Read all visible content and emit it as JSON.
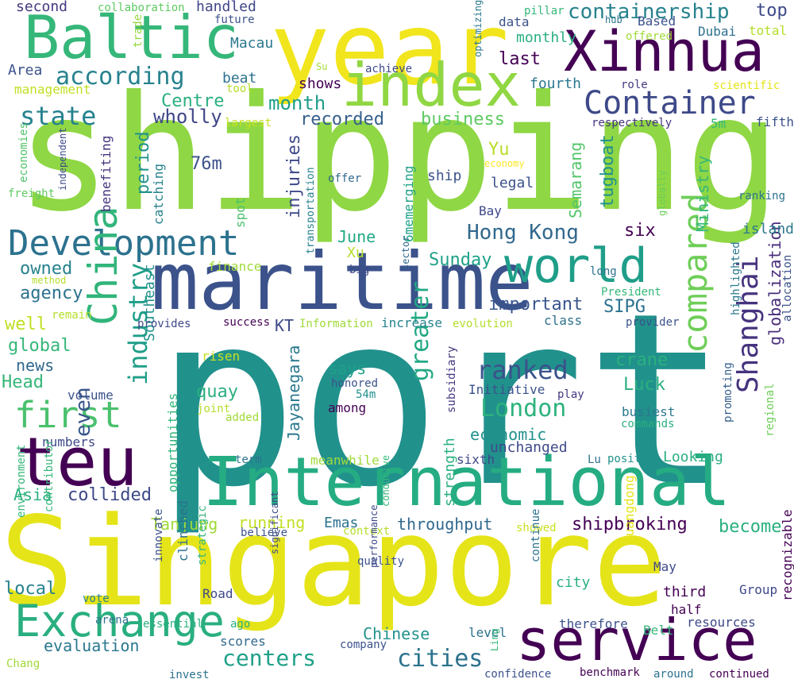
{
  "words": [
    {
      "text": "port",
      "color": "#21918c"
    },
    {
      "text": "shipping",
      "color": "#8fd744"
    },
    {
      "text": "Singapore",
      "color": "#e5e419"
    },
    {
      "text": "year",
      "color": "#f1e51d"
    },
    {
      "text": "International",
      "color": "#25ac82"
    },
    {
      "text": "maritime",
      "color": "#3b528b"
    },
    {
      "text": "Xinhua",
      "color": "#440154"
    },
    {
      "text": "index",
      "color": "#90d743"
    },
    {
      "text": "service",
      "color": "#440154"
    },
    {
      "text": "Baltic",
      "color": "#35b779"
    },
    {
      "text": "Container",
      "color": "#3e4989"
    },
    {
      "text": "world",
      "color": "#1f9e89"
    },
    {
      "text": "teu",
      "color": "#440154"
    },
    {
      "text": "Development",
      "color": "#2c728e"
    },
    {
      "text": "Exchange",
      "color": "#29af7f"
    },
    {
      "text": "first",
      "color": "#4ac16d"
    },
    {
      "text": "China",
      "color": "#31b57b"
    },
    {
      "text": "compared",
      "color": "#6ece58"
    },
    {
      "text": "Shanghai",
      "color": "#46337e"
    },
    {
      "text": "according",
      "color": "#26828e"
    },
    {
      "text": "containership",
      "color": "#26828e"
    },
    {
      "text": "state",
      "color": "#26828e"
    },
    {
      "text": "industry",
      "color": "#1f9e89"
    },
    {
      "text": "greater",
      "color": "#22a884"
    },
    {
      "text": "even",
      "color": "#39568c"
    },
    {
      "text": "ranked",
      "color": "#3b528b"
    },
    {
      "text": "London",
      "color": "#2db27d"
    },
    {
      "text": "centers",
      "color": "#1fa188"
    },
    {
      "text": "cities",
      "color": "#2c728e"
    },
    {
      "text": "Hong Kong",
      "color": "#31688e"
    },
    {
      "text": "globalization",
      "color": "#472c7a"
    },
    {
      "text": "Jayanegara",
      "color": "#2a788e"
    },
    {
      "text": "Semarang",
      "color": "#52c569"
    },
    {
      "text": "injuries",
      "color": "#3e4989"
    },
    {
      "text": "business",
      "color": "#5ec962"
    },
    {
      "text": "recorded",
      "color": "#355f8d"
    },
    {
      "text": "month",
      "color": "#1f9e89"
    },
    {
      "text": "Centre",
      "color": "#2ab07f"
    },
    {
      "text": "wholly",
      "color": "#404688"
    },
    {
      "text": "last",
      "color": "#440154"
    },
    {
      "text": "fourth",
      "color": "#2a788e"
    },
    {
      "text": "data",
      "color": "#3b528b"
    },
    {
      "text": "monthly",
      "color": "#29af7f"
    },
    {
      "text": "top",
      "color": "#3e4989"
    },
    {
      "text": "Dubai",
      "color": "#2d708e"
    },
    {
      "text": "total",
      "color": "#b5de2b"
    },
    {
      "text": "Based",
      "color": "#3b528b"
    },
    {
      "text": "offered",
      "color": "#a0da39"
    },
    {
      "text": "hub",
      "color": "#2c728e"
    },
    {
      "text": "pillar",
      "color": "#35b779"
    },
    {
      "text": "optimizing",
      "color": "#2a788e"
    },
    {
      "text": "second",
      "color": "#453781"
    },
    {
      "text": "collaboration",
      "color": "#5ec962"
    },
    {
      "text": "handled",
      "color": "#404688"
    },
    {
      "text": "future",
      "color": "#3b528b"
    },
    {
      "text": "trade",
      "color": "#95d840"
    },
    {
      "text": "Macau",
      "color": "#2a788e"
    },
    {
      "text": "Area",
      "color": "#3b528b"
    },
    {
      "text": "management",
      "color": "#c2df23"
    },
    {
      "text": "beat",
      "color": "#2c728e"
    },
    {
      "text": "tool",
      "color": "#b5de2b"
    },
    {
      "text": "Su",
      "color": "#a5db36"
    },
    {
      "text": "achieve",
      "color": "#3e4989"
    },
    {
      "text": "shows",
      "color": "#440154"
    },
    {
      "text": "role",
      "color": "#453781"
    },
    {
      "text": "scientific",
      "color": "#e5e419"
    },
    {
      "text": "respectively",
      "color": "#46337e"
    },
    {
      "text": "5m",
      "color": "#35b779"
    },
    {
      "text": "fifth",
      "color": "#3b528b"
    },
    {
      "text": "largest",
      "color": "#c8e020"
    },
    {
      "text": "economies",
      "color": "#50c46a"
    },
    {
      "text": "freight",
      "color": "#5ec962"
    },
    {
      "text": "independent",
      "color": "#3e4989"
    },
    {
      "text": "benefiting",
      "color": "#46337e"
    },
    {
      "text": "catching",
      "color": "#26828e"
    },
    {
      "text": "period",
      "color": "#21918c"
    },
    {
      "text": "76m",
      "color": "#3b528b"
    },
    {
      "text": "spot",
      "color": "#4ac16d"
    },
    {
      "text": "transportation",
      "color": "#26828e"
    },
    {
      "text": "offer",
      "color": "#31688e"
    },
    {
      "text": "ship",
      "color": "#3b528b"
    },
    {
      "text": "economy",
      "color": "#fde725"
    },
    {
      "text": "Yu",
      "color": "#b8de29"
    },
    {
      "text": "legal",
      "color": "#3b528b"
    },
    {
      "text": "tugboat",
      "color": "#21918c"
    },
    {
      "text": "Ministry",
      "color": "#35b779"
    },
    {
      "text": "globally",
      "color": "#6ece58"
    },
    {
      "text": "ranking",
      "color": "#2c728e"
    },
    {
      "text": "six",
      "color": "#440154"
    },
    {
      "text": "island",
      "color": "#2a788e"
    },
    {
      "text": "Bay",
      "color": "#3e4989"
    },
    {
      "text": "6memerging",
      "color": "#1fa188"
    },
    {
      "text": "June",
      "color": "#22a884"
    },
    {
      "text": "Xu",
      "color": "#b5de2b"
    },
    {
      "text": "owned",
      "color": "#26828e"
    },
    {
      "text": "Sunday",
      "color": "#1fa188"
    },
    {
      "text": "agency",
      "color": "#2c728e"
    },
    {
      "text": "important",
      "color": "#39568c"
    },
    {
      "text": "SIPG",
      "color": "#2c728e"
    },
    {
      "text": "finance",
      "color": "#a0da39"
    },
    {
      "text": "method",
      "color": "#b5de2b"
    },
    {
      "text": "sector",
      "color": "#31688e"
    },
    {
      "text": "big",
      "color": "#3e4989"
    },
    {
      "text": "Southeast",
      "color": "#21918c"
    },
    {
      "text": "long",
      "color": "#2c728e"
    },
    {
      "text": "President",
      "color": "#35b779"
    },
    {
      "text": "highlighted",
      "color": "#2a788e"
    },
    {
      "text": "allocation",
      "color": "#3b528b"
    },
    {
      "text": "well",
      "color": "#c2df23"
    },
    {
      "text": "remain",
      "color": "#b5de2b"
    },
    {
      "text": "provides",
      "color": "#3e4989"
    },
    {
      "text": "success",
      "color": "#440154"
    },
    {
      "text": "KT",
      "color": "#3e4989"
    },
    {
      "text": "Information",
      "color": "#a0da39"
    },
    {
      "text": "increase",
      "color": "#26828e"
    },
    {
      "text": "evolution",
      "color": "#b5de2b"
    },
    {
      "text": "class",
      "color": "#2c728e"
    },
    {
      "text": "provider",
      "color": "#3b528b"
    },
    {
      "text": "global",
      "color": "#35b779"
    },
    {
      "text": "news",
      "color": "#31688e"
    },
    {
      "text": "says",
      "color": "#1fa188"
    },
    {
      "text": "crane",
      "color": "#2ab07f"
    },
    {
      "text": "risen",
      "color": "#c8e020"
    },
    {
      "text": "honored",
      "color": "#3b528b"
    },
    {
      "text": "54m",
      "color": "#21918c"
    },
    {
      "text": "Head",
      "color": "#35b779"
    },
    {
      "text": "quay",
      "color": "#2ab07f"
    },
    {
      "text": "Luck",
      "color": "#2ab07f"
    },
    {
      "text": "opportunities",
      "color": "#31b57b"
    },
    {
      "text": "volume",
      "color": "#3b528b"
    },
    {
      "text": "Initiative",
      "color": "#3b528b"
    },
    {
      "text": "play",
      "color": "#453781"
    },
    {
      "text": "joint",
      "color": "#b5de2b"
    },
    {
      "text": "among",
      "color": "#440154"
    },
    {
      "text": "added",
      "color": "#a0da39"
    },
    {
      "text": "subsidiary",
      "color": "#453781"
    },
    {
      "text": "busiest",
      "color": "#2a788e"
    },
    {
      "text": "commands",
      "color": "#2ab07f"
    },
    {
      "text": "promoting",
      "color": "#355f8d"
    },
    {
      "text": "economic",
      "color": "#21918c"
    },
    {
      "text": "unchanged",
      "color": "#3e4989"
    },
    {
      "text": "numbers",
      "color": "#3e4989"
    },
    {
      "text": "term",
      "color": "#2c728e"
    },
    {
      "text": "meanwhile",
      "color": "#a0da39"
    },
    {
      "text": "sixth",
      "color": "#3e4989"
    },
    {
      "text": "Lu",
      "color": "#2c728e"
    },
    {
      "text": "position",
      "color": "#21918c"
    },
    {
      "text": "Looking",
      "color": "#29af7f"
    },
    {
      "text": "regional",
      "color": "#6ece58"
    },
    {
      "text": "environment",
      "color": "#35b779"
    },
    {
      "text": "Asia",
      "color": "#2ab07f"
    },
    {
      "text": "collided",
      "color": "#3e4989"
    },
    {
      "text": "Tanjung",
      "color": "#a0da39"
    },
    {
      "text": "running",
      "color": "#c2df23"
    },
    {
      "text": "Emas",
      "color": "#2c728e"
    },
    {
      "text": "throughput",
      "color": "#31688e"
    },
    {
      "text": "shipbroking",
      "color": "#440154"
    },
    {
      "text": "become",
      "color": "#2ab07f"
    },
    {
      "text": "showed",
      "color": "#c8e020"
    },
    {
      "text": "local",
      "color": "#26828e"
    },
    {
      "text": "contributor",
      "color": "#35b779"
    },
    {
      "text": "believe",
      "color": "#3b528b"
    },
    {
      "text": "context",
      "color": "#b5de2b"
    },
    {
      "text": "conducive",
      "color": "#35b779"
    },
    {
      "text": "strength",
      "color": "#2ab07f"
    },
    {
      "text": "Guangdong",
      "color": "#e5e419"
    },
    {
      "text": "quality",
      "color": "#3b528b"
    },
    {
      "text": "continue",
      "color": "#2c728e"
    },
    {
      "text": "city",
      "color": "#2ab07f"
    },
    {
      "text": "May",
      "color": "#3e4989"
    },
    {
      "text": "third",
      "color": "#440154"
    },
    {
      "text": "Group",
      "color": "#3e4989"
    },
    {
      "text": "half",
      "color": "#440154"
    },
    {
      "text": "innovate",
      "color": "#3b528b"
    },
    {
      "text": "clinched",
      "color": "#2c728e"
    },
    {
      "text": "strategic",
      "color": "#35b779"
    },
    {
      "text": "Road",
      "color": "#3e4989"
    },
    {
      "text": "vote",
      "color": "#26828e"
    },
    {
      "text": "significant",
      "color": "#3e4989"
    },
    {
      "text": "ago",
      "color": "#2ab07f"
    },
    {
      "text": "performance",
      "color": "#3e4989"
    },
    {
      "text": "arena",
      "color": "#2c728e"
    },
    {
      "text": "essential",
      "color": "#2ab07f"
    },
    {
      "text": "scores",
      "color": "#31688e"
    },
    {
      "text": "level",
      "color": "#2c728e"
    },
    {
      "text": "Chinese",
      "color": "#21918c"
    },
    {
      "text": "Belt",
      "color": "#35b779"
    },
    {
      "text": "resources",
      "color": "#3e4989"
    },
    {
      "text": "therefore",
      "color": "#3b528b"
    },
    {
      "text": "recognizable",
      "color": "#440154"
    },
    {
      "text": "evaluation",
      "color": "#2a788e"
    },
    {
      "text": "company",
      "color": "#3b528b"
    },
    {
      "text": "Ling",
      "color": "#35b779"
    },
    {
      "text": "Chang",
      "color": "#a0da39"
    },
    {
      "text": "invest",
      "color": "#2c728e"
    },
    {
      "text": "confidence",
      "color": "#3b528b"
    },
    {
      "text": "benchmark",
      "color": "#440154"
    },
    {
      "text": "around",
      "color": "#2c728e"
    },
    {
      "text": "continued",
      "color": "#440154"
    }
  ]
}
